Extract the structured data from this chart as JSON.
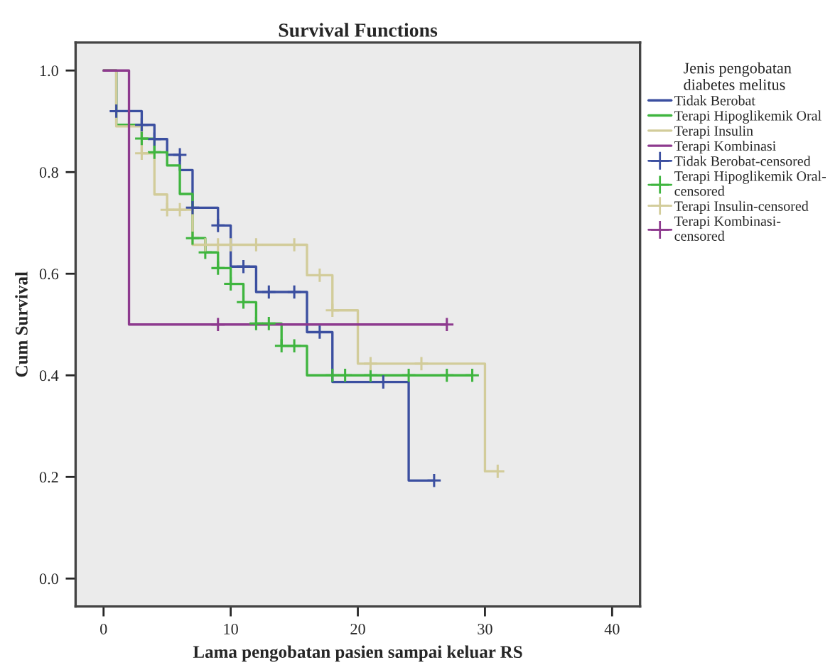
{
  "chart_data": {
    "type": "step",
    "title": "Survival Functions",
    "xlabel": "Lama pengobatan pasien sampai keluar RS",
    "ylabel": "Cum Survival",
    "legend_title": "Jenis pengobatan\ndiabetes melitus",
    "legend": "right",
    "line_style": "solid",
    "xlim": [
      -2.2,
      42.2
    ],
    "ylim": [
      -0.055,
      1.055
    ],
    "xticks": [
      0,
      10,
      20,
      30,
      40
    ],
    "yticks": [
      {
        "value": 0.0,
        "label": "0.0"
      },
      {
        "value": 0.2,
        "label": "0.2"
      },
      {
        "value": 0.4,
        "label": "0.4"
      },
      {
        "value": 0.6,
        "label": "0.6"
      },
      {
        "value": 0.8,
        "label": "0.8"
      },
      {
        "value": 1.0,
        "label": "1.0"
      }
    ],
    "series": [
      {
        "name": "Tidak Berobat",
        "color": "#3b4fa0",
        "x": [
          0,
          1,
          3,
          4,
          5,
          6,
          7,
          9,
          10,
          12,
          16,
          18,
          24,
          26
        ],
        "values": [
          1.0,
          0.92,
          0.893,
          0.865,
          0.834,
          0.804,
          0.73,
          0.695,
          0.614,
          0.564,
          0.485,
          0.387,
          0.193,
          0.193
        ]
      },
      {
        "name": "Terapi Hipoglikemik Oral",
        "color": "#3fb53f",
        "x": [
          0,
          1,
          3,
          4,
          5,
          6,
          7,
          8,
          9,
          10,
          11,
          12,
          14,
          16,
          29
        ],
        "values": [
          1.0,
          0.893,
          0.866,
          0.839,
          0.813,
          0.757,
          0.67,
          0.642,
          0.611,
          0.58,
          0.544,
          0.502,
          0.458,
          0.4,
          0.4
        ]
      },
      {
        "name": "Terapi Insulin",
        "color": "#d2cc9a",
        "x": [
          0,
          1,
          3,
          4,
          5,
          7,
          16,
          18,
          20,
          30,
          31
        ],
        "values": [
          1.0,
          0.89,
          0.837,
          0.756,
          0.726,
          0.657,
          0.597,
          0.528,
          0.423,
          0.211,
          0.211
        ]
      },
      {
        "name": "Terapi Kombinasi",
        "color": "#8d3a8e",
        "x": [
          0,
          2,
          27
        ],
        "values": [
          1.0,
          0.5,
          0.5
        ]
      },
      {
        "name": "Tidak Berobat-censored",
        "type": "scatter",
        "marker": "cross",
        "color": "#3b4fa0",
        "x": [
          1,
          3,
          4,
          6,
          7,
          9,
          11,
          13,
          15,
          17,
          22,
          26
        ],
        "values": [
          0.92,
          0.893,
          0.865,
          0.834,
          0.73,
          0.695,
          0.614,
          0.564,
          0.564,
          0.485,
          0.387,
          0.193
        ]
      },
      {
        "name": "Terapi Hipoglikemik Oral-\ncensored",
        "type": "scatter",
        "marker": "cross",
        "color": "#3fb53f",
        "x": [
          3,
          4,
          7,
          8,
          9,
          10,
          11,
          12,
          13,
          14,
          15,
          18,
          19,
          21,
          24,
          27,
          29
        ],
        "values": [
          0.866,
          0.839,
          0.67,
          0.642,
          0.611,
          0.58,
          0.544,
          0.502,
          0.502,
          0.458,
          0.458,
          0.4,
          0.4,
          0.4,
          0.4,
          0.4,
          0.4
        ]
      },
      {
        "name": "Terapi Insulin-censored",
        "type": "scatter",
        "marker": "cross",
        "color": "#d2cc9a",
        "x": [
          3,
          5,
          6,
          8,
          9,
          10,
          12,
          15,
          17,
          18,
          21,
          25,
          31
        ],
        "values": [
          0.837,
          0.726,
          0.726,
          0.657,
          0.657,
          0.657,
          0.657,
          0.657,
          0.597,
          0.528,
          0.423,
          0.423,
          0.211
        ]
      },
      {
        "name": "Terapi Kombinasi-\ncensored",
        "type": "scatter",
        "marker": "cross",
        "color": "#8d3a8e",
        "x": [
          9,
          27
        ],
        "values": [
          0.5,
          0.5
        ]
      }
    ]
  }
}
